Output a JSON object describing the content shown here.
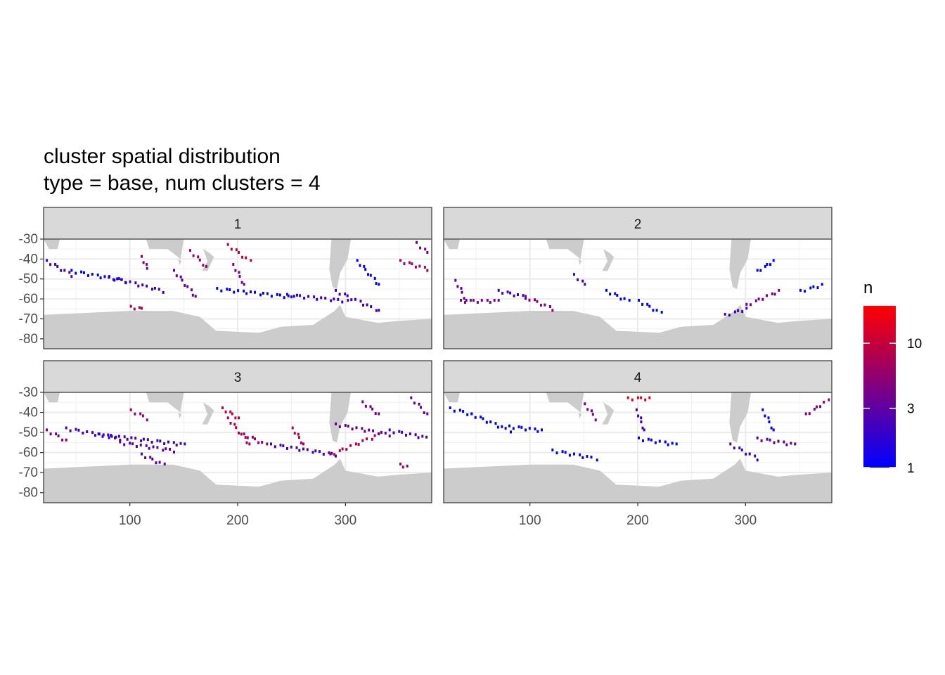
{
  "chart_data": {
    "type": "heatmap",
    "title": "cluster spatial distribution",
    "subtitle": "type = base, num clusters = 4",
    "xlabel": "",
    "ylabel": "",
    "xlim": [
      20,
      380
    ],
    "ylim": [
      -85,
      -30
    ],
    "x_ticks": [
      "100",
      "200",
      "300"
    ],
    "x_tick_values": [
      100,
      200,
      300
    ],
    "y_ticks": [
      "-30",
      "-40",
      "-50",
      "-60",
      "-70",
      "-80"
    ],
    "y_tick_values": [
      -30,
      -40,
      -50,
      -60,
      -70,
      -80
    ],
    "grid": true,
    "legend": {
      "title": "n",
      "position": "right",
      "scale": "log",
      "breaks": [
        "1",
        "3",
        "10"
      ],
      "break_values": [
        1,
        3,
        10
      ],
      "range": [
        1,
        20
      ],
      "colors": [
        "#0000ff",
        "#ff0000"
      ]
    },
    "land_color": "#cccccc",
    "facets": [
      {
        "label": "1",
        "tracks": [
          {
            "x0": 22,
            "y0": -40,
            "x1": 45,
            "y1": -47,
            "n": 2
          },
          {
            "x0": 45,
            "y0": -45,
            "x1": 95,
            "y1": -50,
            "n": 1
          },
          {
            "x0": 80,
            "y0": -48,
            "x1": 130,
            "y1": -55,
            "n": 2
          },
          {
            "x0": 110,
            "y0": -38,
            "x1": 115,
            "y1": -44,
            "n": 5
          },
          {
            "x0": 140,
            "y0": -45,
            "x1": 160,
            "y1": -58,
            "n": 3
          },
          {
            "x0": 155,
            "y0": -35,
            "x1": 170,
            "y1": -43,
            "n": 6
          },
          {
            "x0": 190,
            "y0": -32,
            "x1": 210,
            "y1": -40,
            "n": 9
          },
          {
            "x0": 195,
            "y0": -42,
            "x1": 205,
            "y1": -52,
            "n": 4
          },
          {
            "x0": 180,
            "y0": -54,
            "x1": 250,
            "y1": -58,
            "n": 1
          },
          {
            "x0": 245,
            "y0": -57,
            "x1": 300,
            "y1": -60,
            "n": 2
          },
          {
            "x0": 290,
            "y0": -55,
            "x1": 330,
            "y1": -65,
            "n": 2
          },
          {
            "x0": 310,
            "y0": -40,
            "x1": 330,
            "y1": -52,
            "n": 1
          },
          {
            "x0": 350,
            "y0": -40,
            "x1": 375,
            "y1": -44,
            "n": 7
          },
          {
            "x0": 365,
            "y0": -31,
            "x1": 375,
            "y1": -36,
            "n": 4
          },
          {
            "x0": 100,
            "y0": -63,
            "x1": 110,
            "y1": -64,
            "n": 8
          }
        ]
      },
      {
        "label": "2",
        "tracks": [
          {
            "x0": 30,
            "y0": -50,
            "x1": 40,
            "y1": -60,
            "n": 3
          },
          {
            "x0": 35,
            "y0": -60,
            "x1": 70,
            "y1": -60,
            "n": 4
          },
          {
            "x0": 70,
            "y0": -55,
            "x1": 95,
            "y1": -58,
            "n": 2
          },
          {
            "x0": 95,
            "y0": -58,
            "x1": 120,
            "y1": -64,
            "n": 5
          },
          {
            "x0": 140,
            "y0": -47,
            "x1": 150,
            "y1": -52,
            "n": 2
          },
          {
            "x0": 170,
            "y0": -55,
            "x1": 190,
            "y1": -60,
            "n": 1
          },
          {
            "x0": 200,
            "y0": -60,
            "x1": 220,
            "y1": -66,
            "n": 1
          },
          {
            "x0": 280,
            "y0": -67,
            "x1": 300,
            "y1": -64,
            "n": 2
          },
          {
            "x0": 300,
            "y0": -62,
            "x1": 330,
            "y1": -55,
            "n": 4
          },
          {
            "x0": 310,
            "y0": -45,
            "x1": 325,
            "y1": -40,
            "n": 1
          },
          {
            "x0": 350,
            "y0": -55,
            "x1": 370,
            "y1": -52,
            "n": 1
          }
        ]
      },
      {
        "label": "3",
        "tracks": [
          {
            "x0": 22,
            "y0": -48,
            "x1": 40,
            "y1": -53,
            "n": 4
          },
          {
            "x0": 40,
            "y0": -47,
            "x1": 90,
            "y1": -52,
            "n": 2
          },
          {
            "x0": 70,
            "y0": -50,
            "x1": 150,
            "y1": -55,
            "n": 2
          },
          {
            "x0": 90,
            "y0": -54,
            "x1": 140,
            "y1": -58,
            "n": 3
          },
          {
            "x0": 110,
            "y0": -60,
            "x1": 130,
            "y1": -65,
            "n": 3
          },
          {
            "x0": 100,
            "y0": -38,
            "x1": 115,
            "y1": -42,
            "n": 6
          },
          {
            "x0": 185,
            "y0": -37,
            "x1": 200,
            "y1": -42,
            "n": 9
          },
          {
            "x0": 190,
            "y0": -42,
            "x1": 210,
            "y1": -55,
            "n": 7
          },
          {
            "x0": 205,
            "y0": -50,
            "x1": 225,
            "y1": -55,
            "n": 6
          },
          {
            "x0": 250,
            "y0": -47,
            "x1": 260,
            "y1": -55,
            "n": 8
          },
          {
            "x0": 230,
            "y0": -55,
            "x1": 290,
            "y1": -60,
            "n": 2
          },
          {
            "x0": 285,
            "y0": -60,
            "x1": 330,
            "y1": -50,
            "n": 8
          },
          {
            "x0": 290,
            "y0": -45,
            "x1": 340,
            "y1": -50,
            "n": 3
          },
          {
            "x0": 340,
            "y0": -48,
            "x1": 378,
            "y1": -52,
            "n": 2
          },
          {
            "x0": 350,
            "y0": -65,
            "x1": 355,
            "y1": -66,
            "n": 7
          },
          {
            "x0": 315,
            "y0": -34,
            "x1": 330,
            "y1": -40,
            "n": 4
          },
          {
            "x0": 360,
            "y0": -32,
            "x1": 375,
            "y1": -40,
            "n": 3
          }
        ]
      },
      {
        "label": "4",
        "tracks": [
          {
            "x0": 25,
            "y0": -37,
            "x1": 45,
            "y1": -40,
            "n": 1
          },
          {
            "x0": 45,
            "y0": -40,
            "x1": 80,
            "y1": -48,
            "n": 1
          },
          {
            "x0": 80,
            "y0": -46,
            "x1": 110,
            "y1": -48,
            "n": 1
          },
          {
            "x0": 150,
            "y0": -35,
            "x1": 160,
            "y1": -42,
            "n": 4
          },
          {
            "x0": 190,
            "y0": -32,
            "x1": 210,
            "y1": -32,
            "n": 14
          },
          {
            "x0": 198,
            "y0": -38,
            "x1": 205,
            "y1": -48,
            "n": 2
          },
          {
            "x0": 200,
            "y0": -52,
            "x1": 235,
            "y1": -55,
            "n": 1
          },
          {
            "x0": 120,
            "y0": -58,
            "x1": 160,
            "y1": -62,
            "n": 1
          },
          {
            "x0": 285,
            "y0": -55,
            "x1": 310,
            "y1": -62,
            "n": 2
          },
          {
            "x0": 310,
            "y0": -52,
            "x1": 345,
            "y1": -55,
            "n": 3
          },
          {
            "x0": 315,
            "y0": -38,
            "x1": 325,
            "y1": -48,
            "n": 1
          },
          {
            "x0": 355,
            "y0": -40,
            "x1": 375,
            "y1": -33,
            "n": 5
          }
        ]
      }
    ]
  }
}
